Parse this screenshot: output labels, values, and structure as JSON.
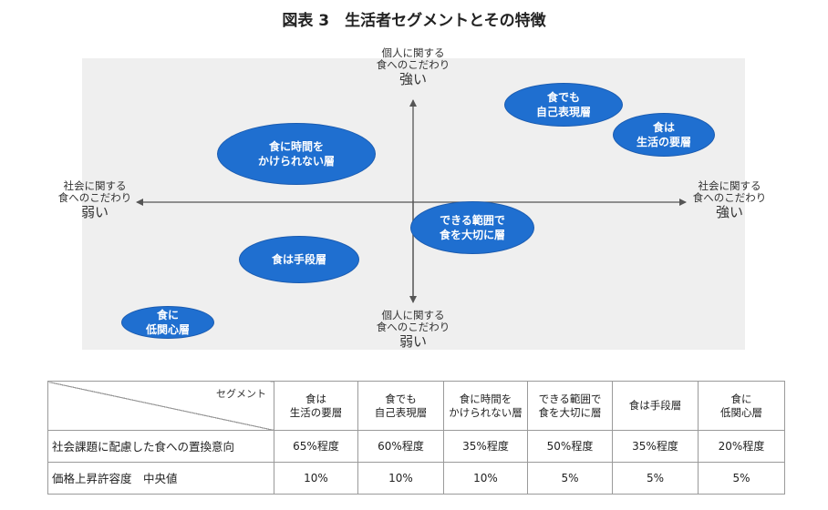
{
  "title": "図表 3　生活者セグメントとその特徴",
  "axes": {
    "top": {
      "label": "個人に関する\n食へのこだわり",
      "strength": "強い"
    },
    "bottom": {
      "label": "個人に関する\n食へのこだわり",
      "strength": "弱い"
    },
    "left": {
      "label": "社会に関する\n食へのこだわり",
      "strength": "弱い"
    },
    "right": {
      "label": "社会に関する\n食へのこだわり",
      "strength": "強い"
    }
  },
  "segments": [
    {
      "name": "食でも\n自己表現層"
    },
    {
      "name": "食は\n生活の要層"
    },
    {
      "name": "食に時間を\nかけられない層"
    },
    {
      "name": "できる範囲で\n食を大切に層"
    },
    {
      "name": "食は手段層"
    },
    {
      "name": "食に\n低関心層"
    }
  ],
  "table": {
    "corner_label": "セグメント",
    "columns": [
      "食は\n生活の要層",
      "食でも\n自己表現層",
      "食に時間を\nかけられない層",
      "できる範囲で\n食を大切に層",
      "食は手段層",
      "食に\n低関心層"
    ],
    "rows": [
      {
        "label": "社会課題に配慮した食への置換意向",
        "values": [
          "65%程度",
          "60%程度",
          "35%程度",
          "50%程度",
          "35%程度",
          "20%程度"
        ]
      },
      {
        "label": "価格上昇許容度　中央値",
        "values": [
          "10%",
          "10%",
          "10%",
          "5%",
          "5%",
          "5%"
        ]
      }
    ]
  },
  "colors": {
    "ellipse": "#1f6fd0",
    "panel": "#efefef",
    "axis": "#555555"
  }
}
